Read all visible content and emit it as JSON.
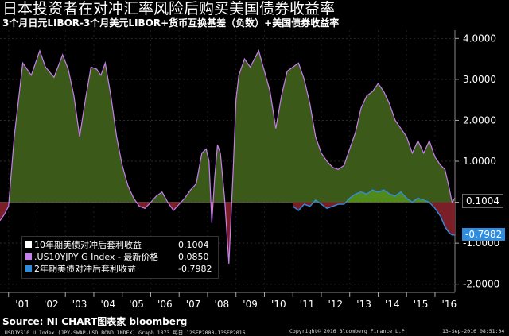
{
  "header": {
    "title": "日本投资者在对冲汇率风险后购买美国债券收益率",
    "subtitle": "3个月日元LIBOR-3个月美元LIBOR+货币互换基差（负数）+美国债券收益率"
  },
  "source": "Source: NI CHART图表家 bloomberg",
  "footer": {
    "left": ".USDJYS10 U Index (JPY-SWAP-USD BOND INDEX) Graph 1073  每日 12SEP2000-13SEP2016",
    "center": "Copyright© 2016 Bloomberg Finance L.P.",
    "right": "13-Sep-2016 08:51:04"
  },
  "legend": {
    "items": [
      {
        "label": "10年期美债对冲后套利收益",
        "value": "0.1004",
        "color": "#ffffff"
      },
      {
        "label": ".US10YJPY G Index - 最新价格",
        "value": "0.0850",
        "color": "#c97ef0"
      },
      {
        "label": "2年期美债对冲后套利收益",
        "value": "-0.7982",
        "color": "#2f8de0"
      }
    ]
  },
  "badges": {
    "last_value_10y": "0.1004",
    "last_value_2y": "-0.7982"
  },
  "colors": {
    "purple_line": "#c97ef0",
    "blue_line": "#2f8de0",
    "fill_positive": "#3b5a1a",
    "fill_negative": "#7a1e28",
    "green_band": "#4f8a1a"
  },
  "chart_data": {
    "type": "line",
    "title": "日本投资者在对冲汇率风险后购买美国债券收益率",
    "ylim": [
      -2.2,
      4.2
    ],
    "y_ticks": [
      "4.0000",
      "3.0000",
      "2.0000",
      "1.0000",
      "",
      "-1.0000",
      "-2.0000"
    ],
    "y_tick_values": [
      4,
      3,
      2,
      1,
      0,
      -1,
      -2
    ],
    "x_tick_labels": [
      "'01",
      "'02",
      "'03",
      "'04",
      "'05",
      "'06",
      "'07",
      "'08",
      "'09",
      "'10",
      "'11",
      "'12",
      "'13",
      "'14",
      "'15",
      "'16"
    ],
    "x_range": [
      2000.7,
      2016.7
    ],
    "series": [
      {
        "name": "10年期美债对冲后套利收益",
        "x": [
          2000.7,
          2000.85,
          2001.0,
          2001.2,
          2001.5,
          2001.8,
          2002.1,
          2002.3,
          2002.6,
          2002.9,
          2003.1,
          2003.3,
          2003.5,
          2003.7,
          2003.9,
          2004.1,
          2004.25,
          2004.4,
          2004.6,
          2004.8,
          2005.0,
          2005.2,
          2005.4,
          2005.6,
          2005.8,
          2006.0,
          2006.2,
          2006.4,
          2006.6,
          2006.8,
          2007.0,
          2007.2,
          2007.4,
          2007.6,
          2007.8,
          2007.95,
          2008.05,
          2008.15,
          2008.25,
          2008.35,
          2008.45,
          2008.6,
          2008.75,
          2008.9,
          2008.97,
          2009.0,
          2009.1,
          2009.3,
          2009.5,
          2009.8,
          2010.0,
          2010.2,
          2010.4,
          2010.6,
          2010.8,
          2011.0,
          2011.2,
          2011.4,
          2011.6,
          2011.8,
          2012.0,
          2012.2,
          2012.4,
          2012.6,
          2012.8,
          2013.0,
          2013.2,
          2013.4,
          2013.6,
          2013.8,
          2014.0,
          2014.2,
          2014.4,
          2014.6,
          2014.8,
          2015.0,
          2015.2,
          2015.4,
          2015.6,
          2015.8,
          2016.0,
          2016.2,
          2016.35,
          2016.5,
          2016.6,
          2016.7
        ],
        "values": [
          -0.45,
          -0.3,
          -0.1,
          1.6,
          3.4,
          3.1,
          3.7,
          3.3,
          3.05,
          3.6,
          3.25,
          2.6,
          1.6,
          2.5,
          3.3,
          3.25,
          3.1,
          3.4,
          2.6,
          1.6,
          0.9,
          0.4,
          0.1,
          -0.1,
          -0.15,
          0.0,
          0.15,
          0.25,
          0.0,
          -0.2,
          -0.05,
          0.1,
          0.3,
          0.45,
          1.2,
          1.3,
          1.0,
          -0.5,
          0.6,
          1.4,
          1.2,
          0.1,
          -1.5,
          0.8,
          2.0,
          2.5,
          3.1,
          3.5,
          3.3,
          3.7,
          3.2,
          2.7,
          1.8,
          2.6,
          3.2,
          3.3,
          3.4,
          3.0,
          2.4,
          1.6,
          1.2,
          1.0,
          0.85,
          0.8,
          0.9,
          1.3,
          1.7,
          2.3,
          2.6,
          2.7,
          2.9,
          2.7,
          2.4,
          2.0,
          1.8,
          1.6,
          1.2,
          1.5,
          1.2,
          1.5,
          1.1,
          0.9,
          0.8,
          0.35,
          0.0,
          0.1
        ]
      },
      {
        "name": ".US10YJPY G Index - 最新价格",
        "x": [
          2000.7,
          2016.7
        ],
        "values": [
          null,
          0.085
        ]
      },
      {
        "name": "2年期美债对冲后套利收益",
        "x": [
          2011.0,
          2011.2,
          2011.4,
          2011.6,
          2011.8,
          2012.0,
          2012.2,
          2012.4,
          2012.6,
          2012.8,
          2013.0,
          2013.2,
          2013.4,
          2013.6,
          2013.8,
          2014.0,
          2014.2,
          2014.4,
          2014.6,
          2014.8,
          2015.0,
          2015.2,
          2015.4,
          2015.6,
          2015.8,
          2016.0,
          2016.2,
          2016.35,
          2016.5,
          2016.6,
          2016.7
        ],
        "values": [
          -0.1,
          -0.2,
          -0.05,
          -0.1,
          0.05,
          -0.05,
          -0.15,
          -0.1,
          -0.05,
          -0.05,
          0.1,
          0.2,
          0.25,
          0.2,
          0.3,
          0.25,
          0.3,
          0.2,
          0.15,
          0.25,
          0.1,
          0.0,
          0.1,
          0.05,
          0.0,
          -0.15,
          -0.35,
          -0.6,
          -0.75,
          -0.8,
          -0.8
        ]
      }
    ]
  }
}
